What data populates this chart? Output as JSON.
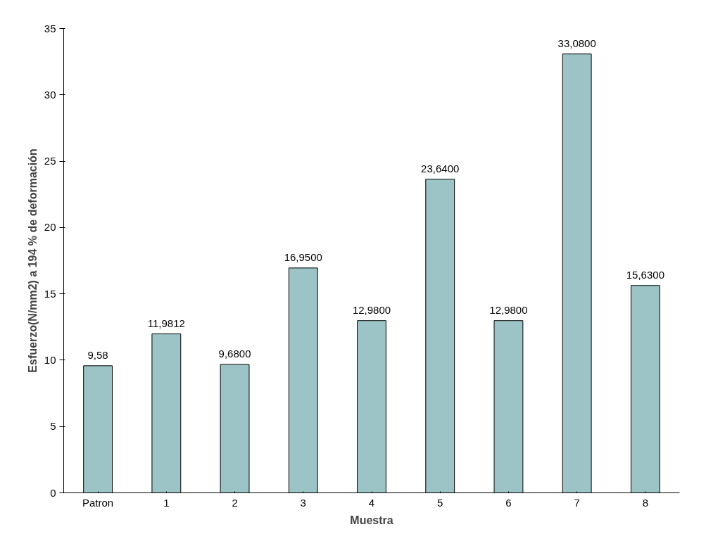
{
  "chart_data": {
    "type": "bar",
    "xlabel": "Muestra",
    "ylabel": "Esfuerzo(N/mm2) a 194 % de deformación",
    "categories": [
      "Patron",
      "1",
      "2",
      "3",
      "4",
      "5",
      "6",
      "7",
      "8"
    ],
    "values": [
      9.58,
      11.9812,
      9.68,
      16.95,
      12.98,
      23.64,
      12.98,
      33.08,
      15.63
    ],
    "value_labels": [
      "9,58",
      "11,9812",
      "9,6800",
      "16,9500",
      "12,9800",
      "23,6400",
      "12,9800",
      "33,0800",
      "15,6300"
    ],
    "color": "#9cc4c6",
    "ylim": [
      0,
      35
    ],
    "yticks": [
      0,
      5,
      10,
      15,
      20,
      25,
      30,
      35
    ],
    "grid": false
  }
}
